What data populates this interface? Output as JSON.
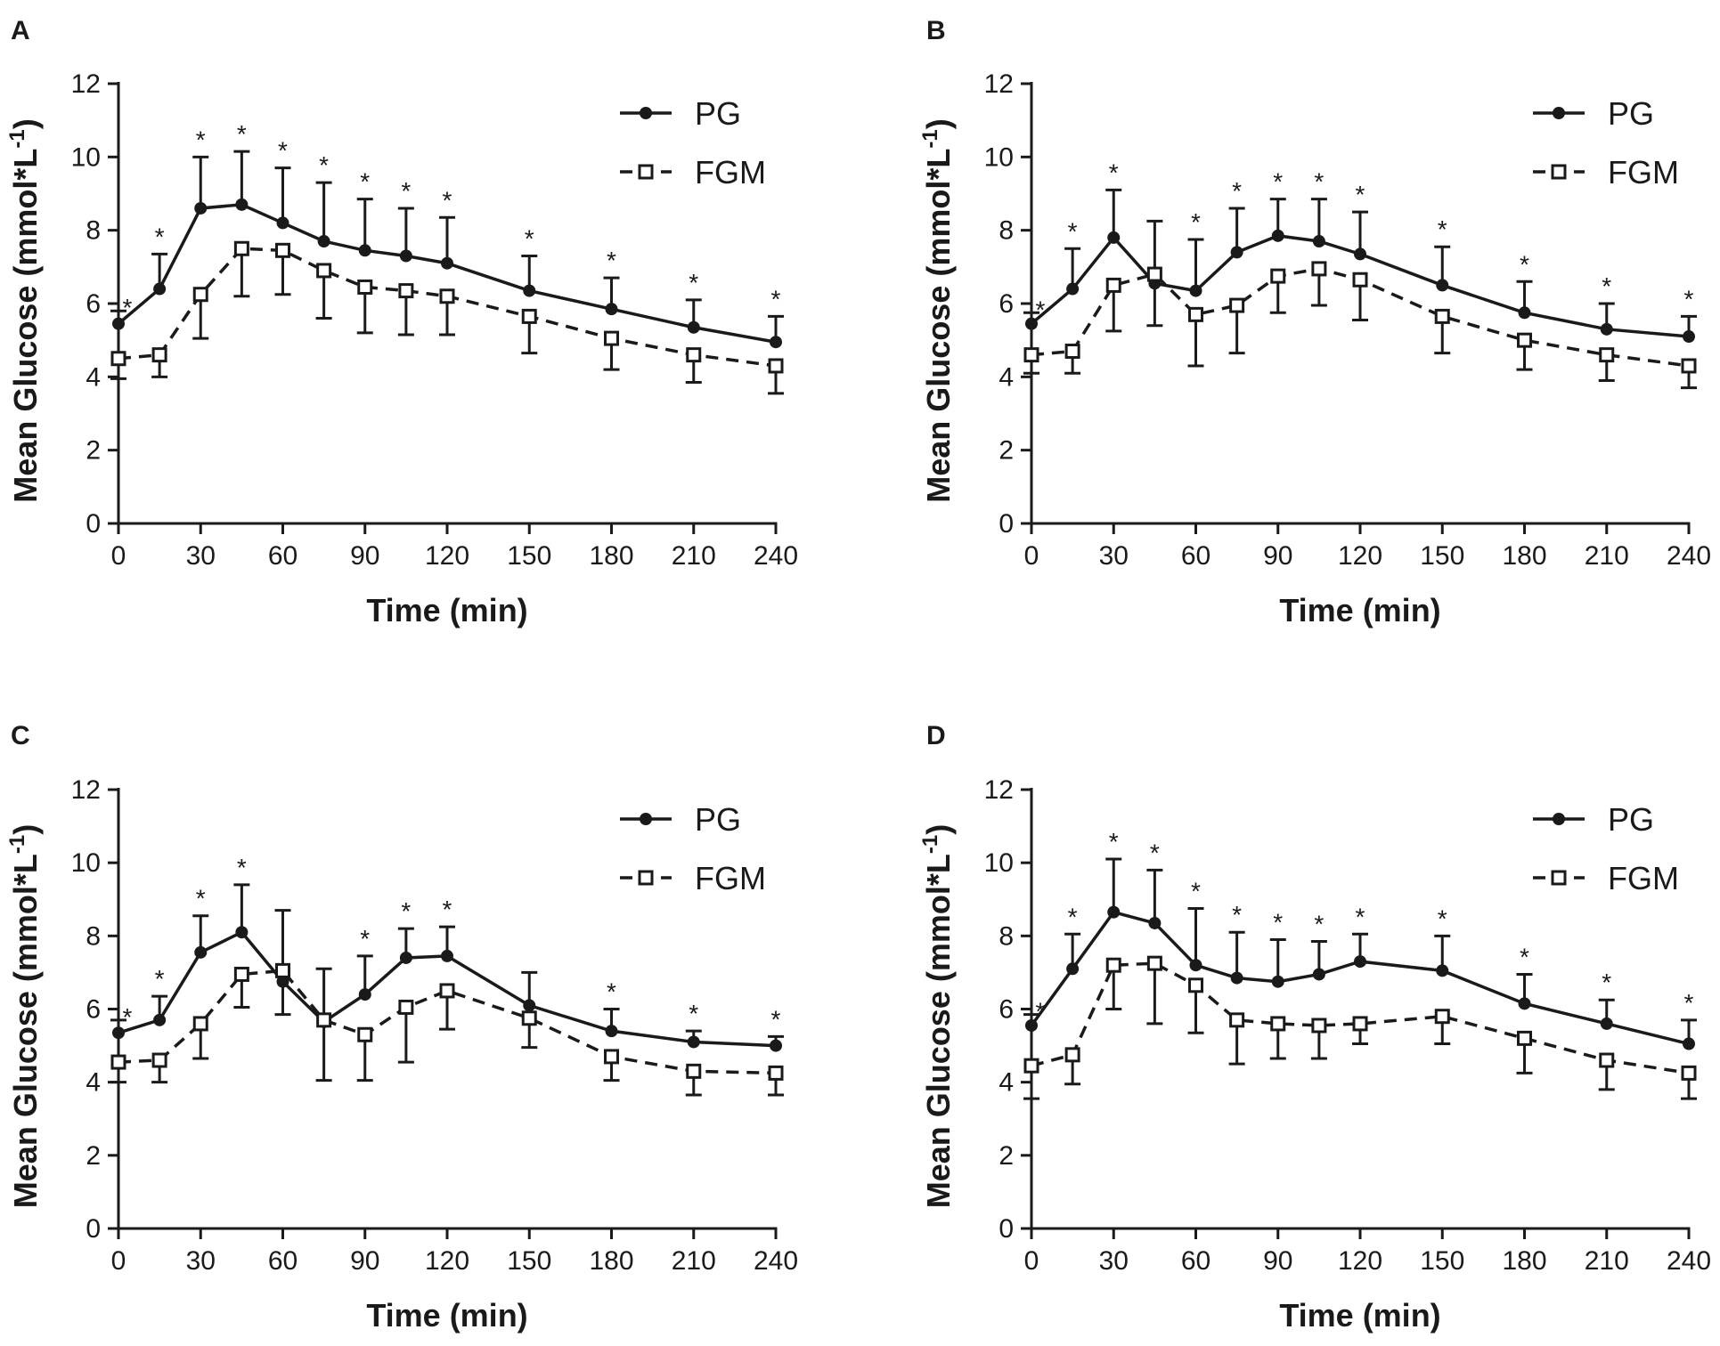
{
  "figure": {
    "colors": {
      "ink": "#1a1a1a",
      "background": "#ffffff"
    },
    "legend_markers": {
      "PG": "filled-circle",
      "FGM": "open-square"
    }
  },
  "chart_data": [
    {
      "panel": "A",
      "type": "line",
      "xlabel": "Time (min)",
      "ylabel": "Mean Glucose (mmol*L-1)",
      "ylabel_parts": {
        "main": "Mean Glucose (mmol*L",
        "sup": "-1",
        "close": ")"
      },
      "xlim": [
        0,
        240
      ],
      "ylim": [
        0,
        12
      ],
      "xticks": [
        "0",
        "30",
        "60",
        "90",
        "120",
        "150",
        "180",
        "210",
        "240"
      ],
      "yticks": [
        "0",
        "2",
        "4",
        "6",
        "8",
        "10",
        "12"
      ],
      "legend": [
        "PG",
        "FGM"
      ],
      "legend_position": "top-right",
      "x": [
        0,
        15,
        30,
        45,
        60,
        75,
        90,
        105,
        120,
        150,
        180,
        210,
        240
      ],
      "series": [
        {
          "name": "PG",
          "style": "solid",
          "marker": "filled-circle",
          "values": [
            5.45,
            6.4,
            8.6,
            8.7,
            8.2,
            7.7,
            7.45,
            7.3,
            7.1,
            6.35,
            5.85,
            5.35,
            4.95
          ],
          "err": [
            0.35,
            0.95,
            1.4,
            1.45,
            1.5,
            1.6,
            1.4,
            1.3,
            1.25,
            0.95,
            0.85,
            0.75,
            0.7
          ]
        },
        {
          "name": "FGM",
          "style": "dashed",
          "marker": "open-square",
          "values": [
            4.5,
            4.6,
            6.25,
            7.5,
            7.45,
            6.9,
            6.45,
            6.35,
            6.2,
            5.65,
            5.05,
            4.6,
            4.3
          ],
          "err": [
            0.55,
            0.6,
            1.2,
            1.3,
            1.2,
            1.3,
            1.25,
            1.2,
            1.05,
            1.0,
            0.85,
            0.75,
            0.75
          ]
        }
      ],
      "significance": {
        "symbol": "*",
        "x": [
          0,
          15,
          30,
          45,
          60,
          75,
          90,
          105,
          120,
          150,
          180,
          210,
          240
        ]
      }
    },
    {
      "panel": "B",
      "type": "line",
      "xlabel": "Time (min)",
      "ylabel": "Mean Glucose (mmol*L-1)",
      "ylabel_parts": {
        "main": "Mean Glucose (mmol*L",
        "sup": "-1",
        "close": ")"
      },
      "xlim": [
        0,
        240
      ],
      "ylim": [
        0,
        12
      ],
      "xticks": [
        "0",
        "30",
        "60",
        "90",
        "120",
        "150",
        "180",
        "210",
        "240"
      ],
      "yticks": [
        "0",
        "2",
        "4",
        "6",
        "8",
        "10",
        "12"
      ],
      "legend": [
        "PG",
        "FGM"
      ],
      "legend_position": "top-right",
      "x": [
        0,
        15,
        30,
        45,
        60,
        75,
        90,
        105,
        120,
        150,
        180,
        210,
        240
      ],
      "series": [
        {
          "name": "PG",
          "style": "solid",
          "marker": "filled-circle",
          "values": [
            5.45,
            6.4,
            7.8,
            6.55,
            6.35,
            7.4,
            7.85,
            7.7,
            7.35,
            6.5,
            5.75,
            5.3,
            5.1
          ],
          "err": [
            0.3,
            1.1,
            1.3,
            1.7,
            1.4,
            1.2,
            1.0,
            1.15,
            1.15,
            1.05,
            0.85,
            0.7,
            0.55
          ]
        },
        {
          "name": "FGM",
          "style": "dashed",
          "marker": "open-square",
          "values": [
            4.6,
            4.7,
            6.5,
            6.8,
            5.7,
            5.95,
            6.75,
            6.95,
            6.65,
            5.65,
            5.0,
            4.6,
            4.3
          ],
          "err": [
            0.5,
            0.6,
            1.25,
            1.4,
            1.4,
            1.3,
            1.0,
            1.0,
            1.1,
            1.0,
            0.8,
            0.7,
            0.6
          ]
        }
      ],
      "significance": {
        "symbol": "*",
        "x": [
          0,
          15,
          30,
          60,
          75,
          90,
          105,
          120,
          150,
          180,
          210,
          240
        ]
      }
    },
    {
      "panel": "C",
      "type": "line",
      "xlabel": "Time (min)",
      "ylabel": "Mean Glucose (mmol*L-1)",
      "ylabel_parts": {
        "main": "Mean Glucose (mmol*L",
        "sup": "-1",
        "close": ")"
      },
      "xlim": [
        0,
        240
      ],
      "ylim": [
        0,
        12
      ],
      "xticks": [
        "0",
        "30",
        "60",
        "90",
        "120",
        "150",
        "180",
        "210",
        "240"
      ],
      "yticks": [
        "0",
        "2",
        "4",
        "6",
        "8",
        "10",
        "12"
      ],
      "legend": [
        "PG",
        "FGM"
      ],
      "legend_position": "top-right",
      "x": [
        0,
        15,
        30,
        45,
        60,
        75,
        90,
        105,
        120,
        150,
        180,
        210,
        240
      ],
      "series": [
        {
          "name": "PG",
          "style": "solid",
          "marker": "filled-circle",
          "values": [
            5.35,
            5.7,
            7.55,
            8.1,
            6.75,
            5.65,
            6.4,
            7.4,
            7.45,
            6.1,
            5.4,
            5.1,
            5.0
          ],
          "err": [
            0.35,
            0.65,
            1.0,
            1.3,
            1.95,
            1.45,
            1.05,
            0.8,
            0.8,
            0.9,
            0.6,
            0.3,
            0.25
          ]
        },
        {
          "name": "FGM",
          "style": "dashed",
          "marker": "open-square",
          "values": [
            4.55,
            4.6,
            5.6,
            6.95,
            7.05,
            5.7,
            5.3,
            6.05,
            6.5,
            5.75,
            4.7,
            4.3,
            4.25
          ],
          "err": [
            0.55,
            0.6,
            0.95,
            0.9,
            1.2,
            1.65,
            1.25,
            1.5,
            1.05,
            0.8,
            0.65,
            0.65,
            0.6
          ]
        }
      ],
      "significance": {
        "symbol": "*",
        "x": [
          0,
          15,
          30,
          45,
          90,
          105,
          120,
          180,
          210,
          240
        ]
      }
    },
    {
      "panel": "D",
      "type": "line",
      "xlabel": "Time (min)",
      "ylabel": "Mean Glucose (mmol*L-1)",
      "ylabel_parts": {
        "main": "Mean Glucose (mmol*L",
        "sup": "-1",
        "close": ")"
      },
      "xlim": [
        0,
        240
      ],
      "ylim": [
        0,
        12
      ],
      "xticks": [
        "0",
        "30",
        "60",
        "90",
        "120",
        "150",
        "180",
        "210",
        "240"
      ],
      "yticks": [
        "0",
        "2",
        "4",
        "6",
        "8",
        "10",
        "12"
      ],
      "legend": [
        "PG",
        "FGM"
      ],
      "legend_position": "top-right",
      "x": [
        0,
        15,
        30,
        45,
        60,
        75,
        90,
        105,
        120,
        150,
        180,
        210,
        240
      ],
      "series": [
        {
          "name": "PG",
          "style": "solid",
          "marker": "filled-circle",
          "values": [
            5.55,
            7.1,
            8.65,
            8.35,
            7.2,
            6.85,
            6.75,
            6.95,
            7.3,
            7.05,
            6.15,
            5.6,
            5.05
          ],
          "err": [
            0.3,
            0.95,
            1.45,
            1.45,
            1.55,
            1.25,
            1.15,
            0.9,
            0.75,
            0.95,
            0.8,
            0.65,
            0.65
          ]
        },
        {
          "name": "FGM",
          "style": "dashed",
          "marker": "open-square",
          "values": [
            4.45,
            4.75,
            7.2,
            7.25,
            6.65,
            5.7,
            5.6,
            5.55,
            5.6,
            5.8,
            5.2,
            4.6,
            4.25
          ],
          "err": [
            0.9,
            0.8,
            1.2,
            1.65,
            1.3,
            1.2,
            0.95,
            0.9,
            0.55,
            0.75,
            0.95,
            0.8,
            0.7
          ]
        }
      ],
      "significance": {
        "symbol": "*",
        "x": [
          0,
          15,
          30,
          45,
          60,
          75,
          90,
          105,
          120,
          150,
          180,
          210,
          240
        ]
      }
    }
  ]
}
